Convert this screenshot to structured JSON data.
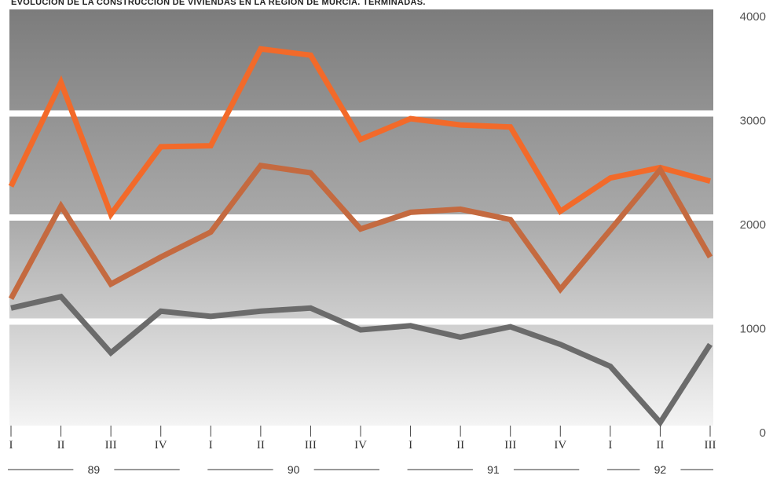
{
  "chart_data": {
    "type": "line",
    "title": "EVOLUCIÓN DE LA CONSTRUCCIÓN DE VIVIENDAS EN LA REGIÓN DE MURCIA. TERMINADAS.",
    "xlabel": "",
    "ylabel": "",
    "ylim": [
      0,
      4000
    ],
    "yticks": [
      "4000",
      "3000",
      "2000",
      "1000",
      "0"
    ],
    "grid": false,
    "legend": "none",
    "categories": [
      "I",
      "II",
      "III",
      "IV",
      "I",
      "II",
      "III",
      "IV",
      "I",
      "II",
      "III",
      "IV",
      "I",
      "II",
      "III"
    ],
    "year_groups": [
      {
        "label": "89",
        "quarters": 4
      },
      {
        "label": "90",
        "quarters": 4
      },
      {
        "label": "91",
        "quarters": 4
      },
      {
        "label": "92",
        "quarters": 3
      }
    ],
    "series": [
      {
        "color": "#f26a2a",
        "values": [
          2300,
          3300,
          2030,
          2680,
          2690,
          3620,
          3560,
          2750,
          2950,
          2890,
          2870,
          2060,
          2380,
          2480,
          2350
        ]
      },
      {
        "color": "#c46a40",
        "values": [
          1220,
          2110,
          1360,
          1620,
          1860,
          2500,
          2430,
          1890,
          2050,
          2080,
          1980,
          1310,
          1880,
          2460,
          1620
        ]
      },
      {
        "color": "#6b6b6b",
        "values": [
          1130,
          1240,
          700,
          1100,
          1050,
          1100,
          1130,
          920,
          960,
          850,
          950,
          780,
          570,
          30,
          780
        ]
      }
    ],
    "colors": {
      "band_top": "#7c7c7c",
      "band_bottom": "#f2f2f2"
    }
  }
}
